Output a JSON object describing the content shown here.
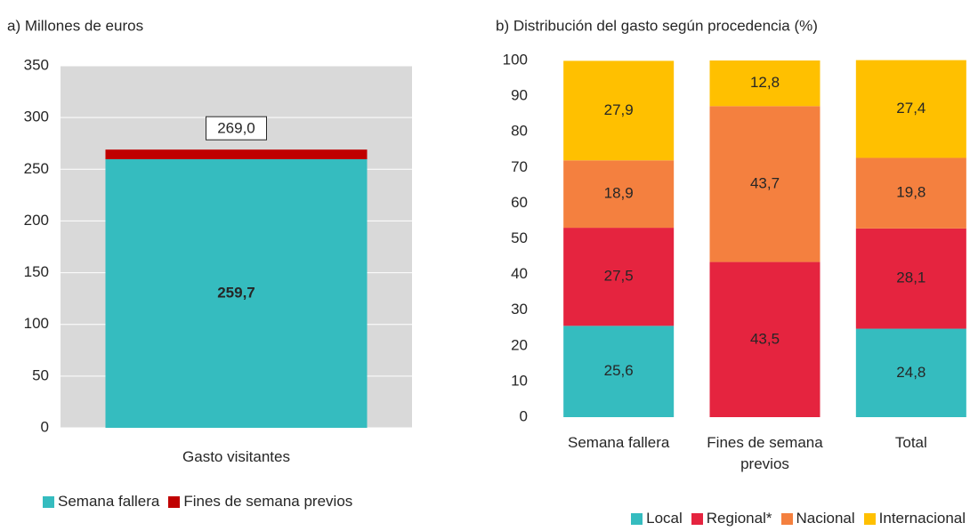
{
  "chart_data": [
    {
      "type": "stacked_bar",
      "title": "a) Millones de euros",
      "categories": [
        "Gasto visitantes"
      ],
      "series": [
        {
          "name": "Semana fallera",
          "color": "#35bcbf",
          "label_color": "#ffffff",
          "values": [
            259.7
          ],
          "value_labels": [
            "259,7"
          ]
        },
        {
          "name": "Fines de semana previos",
          "color": "#c00000",
          "values": [
            9.3
          ]
        }
      ],
      "totals": [
        269.0
      ],
      "total_labels": [
        "269,0"
      ],
      "ylim": [
        0,
        350
      ],
      "yticks": [
        0,
        50,
        100,
        150,
        200,
        250,
        300,
        350
      ],
      "grid": true,
      "background": "#d9d9d9",
      "legend": "bottom-left"
    },
    {
      "type": "stacked_bar",
      "title": "b) Distribución del gasto según procedencia (%)",
      "categories": [
        "Semana fallera",
        "Fines de semana previos",
        "Total"
      ],
      "series": [
        {
          "name": "Local",
          "color": "#35bcbf",
          "label_color": "#ffffff",
          "values": [
            25.6,
            0,
            24.8
          ],
          "value_labels": [
            "25,6",
            null,
            "24,8"
          ]
        },
        {
          "name": "Regional*",
          "color": "#e5243f",
          "label_color": "#ffffff",
          "values": [
            27.5,
            43.5,
            28.1
          ],
          "value_labels": [
            "27,5",
            "43,5",
            "28,1"
          ]
        },
        {
          "name": "Nacional",
          "color": "#f4803f",
          "label_color": "#ffffff",
          "values": [
            18.9,
            43.7,
            19.8
          ],
          "value_labels": [
            "18,9",
            "43,7",
            "19,8"
          ]
        },
        {
          "name": "Internacional",
          "color": "#ffc000",
          "label_color": "#262626",
          "values": [
            27.9,
            12.8,
            27.4
          ],
          "value_labels": [
            "27,9",
            "12,8",
            "27,4"
          ]
        }
      ],
      "ylim": [
        0,
        100
      ],
      "yticks": [
        0,
        10,
        20,
        30,
        40,
        50,
        60,
        70,
        80,
        90,
        100
      ],
      "grid": false,
      "legend": "bottom-right"
    }
  ]
}
